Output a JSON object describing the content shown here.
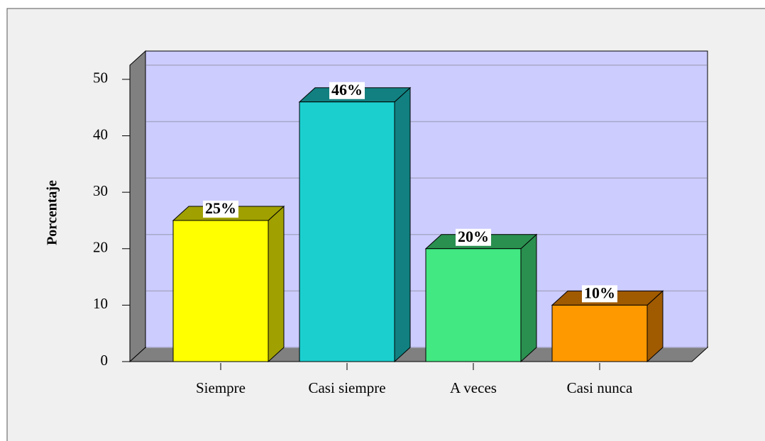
{
  "chart_data": {
    "type": "bar3d",
    "y_label": "Porcentaje",
    "categories": [
      "Siempre",
      "Casi siempre",
      "A veces",
      "Casi nunca"
    ],
    "values": [
      25,
      46,
      20,
      10
    ],
    "value_labels": [
      "25%",
      "46%",
      "20%",
      "10%"
    ],
    "colors": [
      "#ffff00",
      "#1ccfcf",
      "#42e882",
      "#ff9900"
    ],
    "side_colors": [
      "#a0a000",
      "#128080",
      "#2a9050",
      "#a05a00"
    ],
    "ylim": [
      0,
      52.5
    ],
    "yticks": [
      0,
      10,
      20,
      30,
      40,
      50
    ],
    "grid": true
  }
}
